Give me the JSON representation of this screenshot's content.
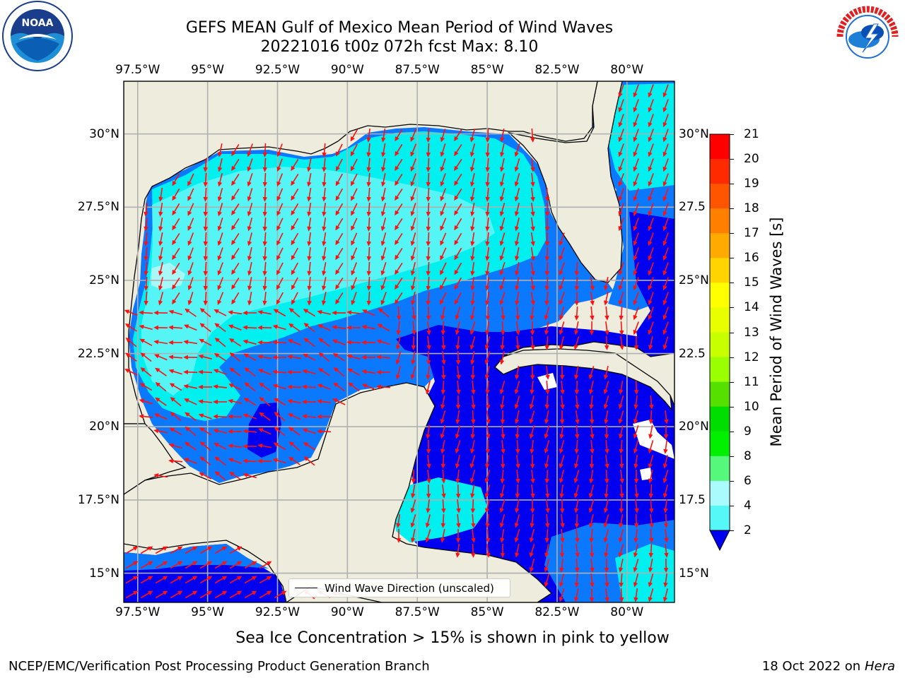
{
  "title": {
    "line1": "GEFS MEAN Gulf of Mexico Mean Period of Wind Waves",
    "line2": "20221016 t00z 072h fcst   Max: 8.10"
  },
  "map": {
    "lon_ticks": [
      "97.5°W",
      "95°W",
      "92.5°W",
      "90°W",
      "87.5°W",
      "85°W",
      "82.5°W",
      "80°W"
    ],
    "lat_ticks_left": [
      "30°N",
      "27.5°N",
      "25°N",
      "22.5°N",
      "20°N",
      "17.5°N",
      "15°N"
    ],
    "lat_ticks_right": [
      "30°N",
      "27.5",
      "25°N",
      "22.5",
      "20°N",
      "17.5",
      "15°N"
    ],
    "legend_label": "Wind Wave Direction (unscaled)",
    "colors": {
      "land": "#eeecdc",
      "c2_4": "#0a78ff",
      "c0_2": "#0000f0",
      "c4_6": "#00f0f0",
      "c6_8": "#55f5f5",
      "c8_9": "#a8f8f8",
      "arrow": "#ff0000",
      "grid": "#b0b0b0"
    }
  },
  "colorbar": {
    "title": "Mean Period of Wind Waves [s]",
    "labels": [
      "21",
      "20",
      "19",
      "18",
      "17",
      "16",
      "15",
      "14",
      "13",
      "12",
      "11",
      "10",
      "9",
      "8",
      "6",
      "4",
      "2"
    ],
    "colors": [
      "#ff0000",
      "#ff2a00",
      "#ff5500",
      "#ff8000",
      "#ffaa00",
      "#ffd400",
      "#ffff00",
      "#e8ff00",
      "#c8ff00",
      "#9aff00",
      "#55e000",
      "#00dd00",
      "#00f000",
      "#55f87a",
      "#aafcfc",
      "#55f7f7",
      "#00f0f0",
      "#0a78ff"
    ]
  },
  "note": "Sea Ice Concentration > 15% is shown in pink to yellow",
  "footer": {
    "left": "NCEP/EMC/Verification Post Processing Product Generation Branch",
    "right_date": "18 Oct 2022 on",
    "right_host": "Hera"
  },
  "logos": {
    "noaa_text": "NOAA",
    "nws_text": "NATIONAL WEATHER SERVICE"
  }
}
